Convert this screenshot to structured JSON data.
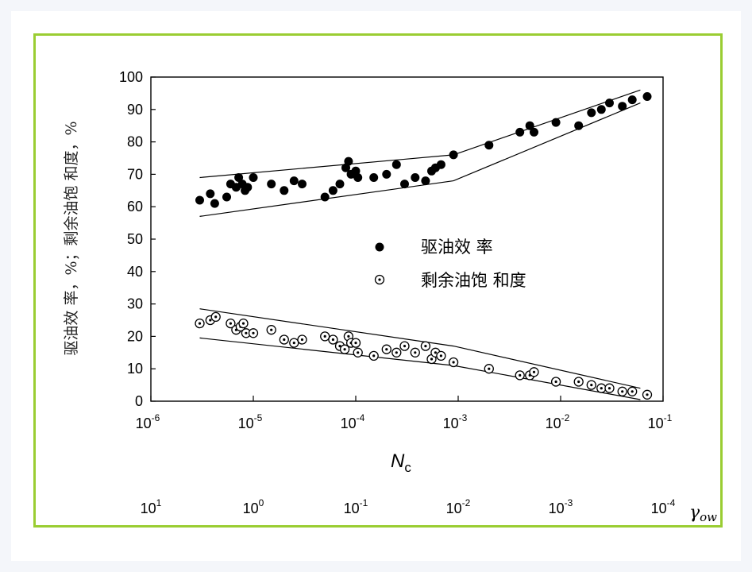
{
  "chart_data": {
    "type": "scatter",
    "title": "",
    "ylabel": "驱油效 率，%；剩余油饱 和度，%",
    "xlabel": "N",
    "xlabel_sub": "c",
    "x_scale": "log",
    "xlim": [
      1e-06,
      0.1
    ],
    "ylim": [
      0,
      100
    ],
    "y_ticks": [
      0,
      10,
      20,
      30,
      40,
      50,
      60,
      70,
      80,
      90,
      100
    ],
    "x_ticks": [
      {
        "value": 1e-06,
        "base": "10",
        "exp": "-6"
      },
      {
        "value": 1e-05,
        "base": "10",
        "exp": "-5"
      },
      {
        "value": 0.0001,
        "base": "10",
        "exp": "-4"
      },
      {
        "value": 0.001,
        "base": "10",
        "exp": "-3"
      },
      {
        "value": 0.01,
        "base": "10",
        "exp": "-2"
      },
      {
        "value": 0.1,
        "base": "10",
        "exp": "-1"
      }
    ],
    "secondary_x": {
      "label": "γ",
      "label_sub": "ow",
      "ticks": [
        {
          "base": "10",
          "exp": "1"
        },
        {
          "base": "10",
          "exp": "0"
        },
        {
          "base": "10",
          "exp": "-1"
        },
        {
          "base": "10",
          "exp": "-2"
        },
        {
          "base": "10",
          "exp": "-3"
        },
        {
          "base": "10",
          "exp": "-4"
        }
      ]
    },
    "legend_position": "center-right",
    "series": [
      {
        "name": "驱油效 率",
        "marker": "filled-circle",
        "color": "#000000",
        "points": [
          [
            3e-06,
            62
          ],
          [
            3.8e-06,
            64
          ],
          [
            4.2e-06,
            61
          ],
          [
            5.5e-06,
            63
          ],
          [
            6e-06,
            67
          ],
          [
            6.8e-06,
            66
          ],
          [
            7.2e-06,
            69
          ],
          [
            7.8e-06,
            67
          ],
          [
            8.3e-06,
            65
          ],
          [
            8.8e-06,
            66
          ],
          [
            1e-05,
            69
          ],
          [
            1.5e-05,
            67
          ],
          [
            2e-05,
            65
          ],
          [
            2.5e-05,
            68
          ],
          [
            3e-05,
            67
          ],
          [
            5e-05,
            63
          ],
          [
            6e-05,
            65
          ],
          [
            7e-05,
            67
          ],
          [
            8e-05,
            72
          ],
          [
            8.5e-05,
            74
          ],
          [
            9e-05,
            70
          ],
          [
            0.0001,
            71
          ],
          [
            0.000105,
            69
          ],
          [
            0.00015,
            69
          ],
          [
            0.0002,
            70
          ],
          [
            0.00025,
            73
          ],
          [
            0.0003,
            67
          ],
          [
            0.00038,
            69
          ],
          [
            0.00048,
            68
          ],
          [
            0.00055,
            71
          ],
          [
            0.0006,
            72
          ],
          [
            0.00068,
            73
          ],
          [
            0.0009,
            76
          ],
          [
            0.002,
            79
          ],
          [
            0.004,
            83
          ],
          [
            0.005,
            85
          ],
          [
            0.0055,
            83
          ],
          [
            0.009,
            86
          ],
          [
            0.015,
            85
          ],
          [
            0.02,
            89
          ],
          [
            0.025,
            90
          ],
          [
            0.03,
            92
          ],
          [
            0.04,
            91
          ],
          [
            0.05,
            93
          ],
          [
            0.07,
            94
          ]
        ]
      },
      {
        "name": "剩余油饱 和度",
        "marker": "dotted-open-circle",
        "color": "#000000",
        "points": [
          [
            3e-06,
            24
          ],
          [
            3.8e-06,
            25
          ],
          [
            4.3e-06,
            26
          ],
          [
            6e-06,
            24
          ],
          [
            6.8e-06,
            22
          ],
          [
            7.5e-06,
            23
          ],
          [
            8e-06,
            24
          ],
          [
            8.5e-06,
            21
          ],
          [
            1e-05,
            21
          ],
          [
            1.5e-05,
            22
          ],
          [
            2e-05,
            19
          ],
          [
            2.5e-05,
            18
          ],
          [
            3e-05,
            19
          ],
          [
            5e-05,
            20
          ],
          [
            6e-05,
            19
          ],
          [
            7e-05,
            17
          ],
          [
            7.8e-05,
            16
          ],
          [
            8.5e-05,
            20
          ],
          [
            9e-05,
            18
          ],
          [
            0.0001,
            18
          ],
          [
            0.000105,
            15
          ],
          [
            0.00015,
            14
          ],
          [
            0.0002,
            16
          ],
          [
            0.00025,
            15
          ],
          [
            0.0003,
            17
          ],
          [
            0.00038,
            15
          ],
          [
            0.00048,
            17
          ],
          [
            0.00055,
            13
          ],
          [
            0.0006,
            15
          ],
          [
            0.00068,
            14
          ],
          [
            0.0009,
            12
          ],
          [
            0.002,
            10
          ],
          [
            0.004,
            8
          ],
          [
            0.005,
            8
          ],
          [
            0.0055,
            9
          ],
          [
            0.009,
            6
          ],
          [
            0.015,
            6
          ],
          [
            0.02,
            5
          ],
          [
            0.025,
            4
          ],
          [
            0.03,
            4
          ],
          [
            0.04,
            3
          ],
          [
            0.05,
            3
          ],
          [
            0.07,
            2
          ]
        ]
      }
    ],
    "envelopes": [
      {
        "name": "efficiency-upper",
        "points": [
          [
            3e-06,
            69
          ],
          [
            0.0009,
            76
          ],
          [
            0.06,
            96
          ]
        ]
      },
      {
        "name": "efficiency-lower",
        "points": [
          [
            3e-06,
            57
          ],
          [
            0.0009,
            68
          ],
          [
            0.06,
            92
          ]
        ]
      },
      {
        "name": "saturation-upper",
        "points": [
          [
            3e-06,
            28.5
          ],
          [
            0.0009,
            17
          ],
          [
            0.06,
            4
          ]
        ]
      },
      {
        "name": "saturation-lower",
        "points": [
          [
            3e-06,
            19.5
          ],
          [
            0.0009,
            11
          ],
          [
            0.06,
            0.5
          ]
        ]
      }
    ]
  }
}
